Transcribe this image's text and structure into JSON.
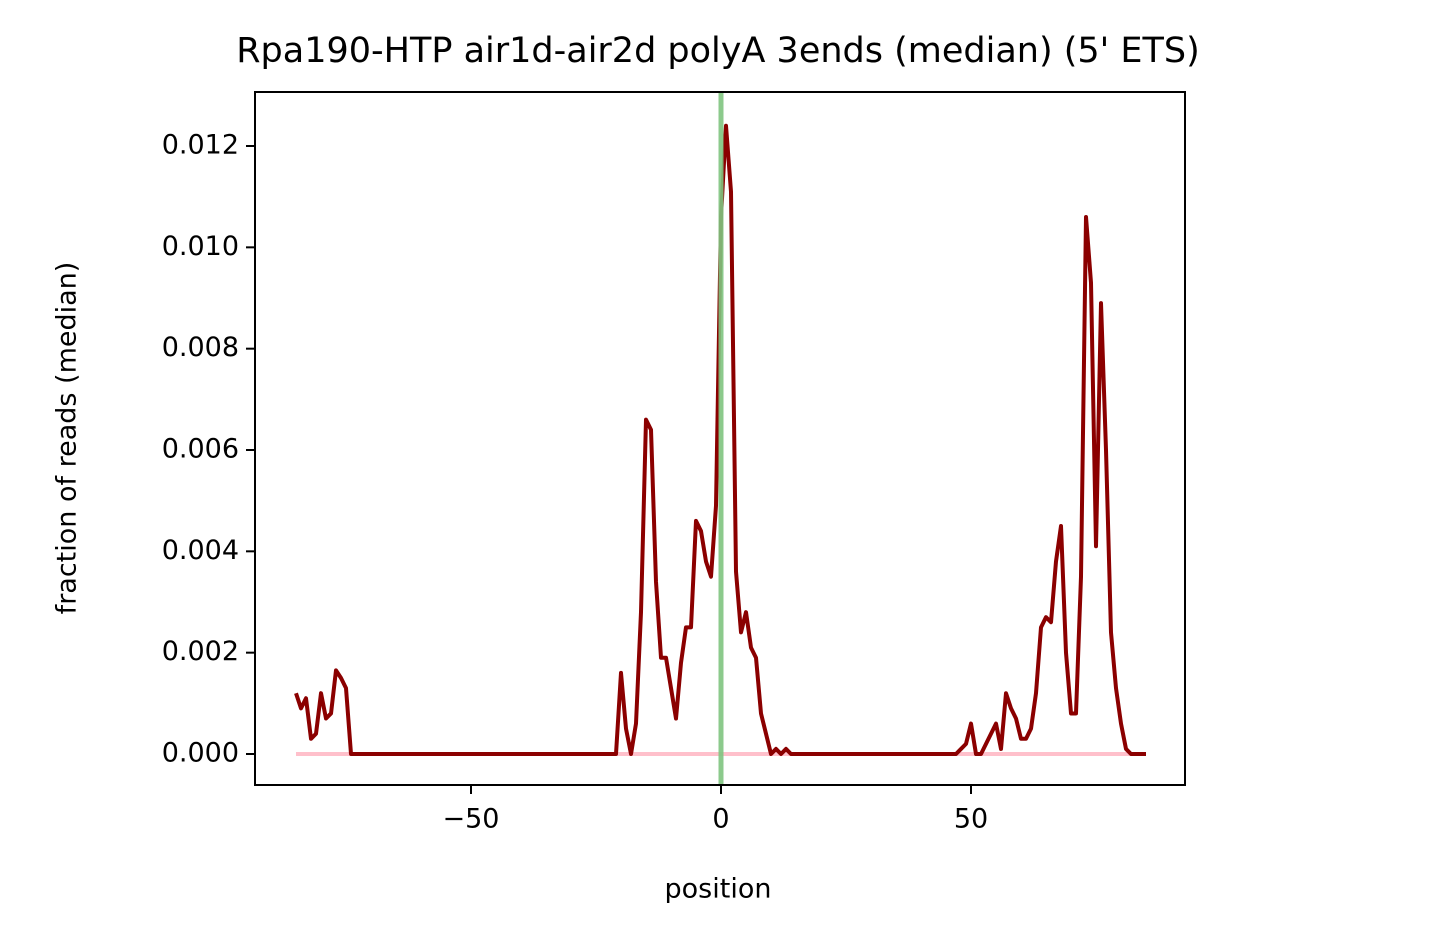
{
  "chart_data": {
    "type": "line",
    "title": "Rpa190-HTP air1d-air2d polyA 3ends (median) (5' ETS)",
    "xlabel": "position",
    "ylabel": "fraction of reads (median)",
    "x": [
      -85,
      -84,
      -83,
      -82,
      -81,
      -80,
      -79,
      -78,
      -77,
      -76,
      -75,
      -74,
      -73,
      -72,
      -71,
      -70,
      -69,
      -68,
      -67,
      -66,
      -65,
      -64,
      -63,
      -62,
      -61,
      -60,
      -59,
      -58,
      -57,
      -56,
      -55,
      -54,
      -53,
      -52,
      -51,
      -50,
      -49,
      -48,
      -47,
      -46,
      -45,
      -44,
      -43,
      -42,
      -41,
      -40,
      -39,
      -38,
      -37,
      -36,
      -35,
      -34,
      -33,
      -32,
      -31,
      -30,
      -29,
      -28,
      -27,
      -26,
      -25,
      -24,
      -23,
      -22,
      -21,
      -20,
      -19,
      -18,
      -17,
      -16,
      -15,
      -14,
      -13,
      -12,
      -11,
      -10,
      -9,
      -8,
      -7,
      -6,
      -5,
      -4,
      -3,
      -2,
      -1,
      0,
      1,
      2,
      3,
      4,
      5,
      6,
      7,
      8,
      9,
      10,
      11,
      12,
      13,
      14,
      15,
      16,
      17,
      18,
      19,
      20,
      21,
      22,
      23,
      24,
      25,
      26,
      27,
      28,
      29,
      30,
      31,
      32,
      33,
      34,
      35,
      36,
      37,
      38,
      39,
      40,
      41,
      42,
      43,
      44,
      45,
      46,
      47,
      48,
      49,
      50,
      51,
      52,
      53,
      54,
      55,
      56,
      57,
      58,
      59,
      60,
      61,
      62,
      63,
      64,
      65,
      66,
      67,
      68,
      69,
      70,
      71,
      72,
      73,
      74,
      75,
      76,
      77,
      78,
      79,
      80,
      81,
      82,
      83,
      84,
      85
    ],
    "series": [
      {
        "color": "#ffc0cb",
        "values": [
          0,
          0,
          0,
          0,
          0,
          0,
          0,
          0,
          0,
          0,
          0,
          0,
          0,
          0,
          0,
          0,
          0,
          0,
          0,
          0,
          0,
          0,
          0,
          0,
          0,
          0,
          0,
          0,
          0,
          0,
          0,
          0,
          0,
          0,
          0,
          0,
          0,
          0,
          0,
          0,
          0,
          0,
          0,
          0,
          0,
          0,
          0,
          0,
          0,
          0,
          0,
          0,
          0,
          0,
          0,
          0,
          0,
          0,
          0,
          0,
          0,
          0,
          0,
          0,
          0,
          0,
          0,
          0,
          0,
          0,
          0,
          0,
          0,
          0,
          0,
          0,
          0,
          0,
          0,
          0,
          0,
          0,
          0,
          0,
          0,
          0,
          0,
          0,
          0,
          0,
          0,
          0,
          0,
          0,
          0,
          0,
          0,
          0,
          0,
          0,
          0,
          0,
          0,
          0,
          0,
          0,
          0,
          0,
          0,
          0,
          0,
          0,
          0,
          0,
          0,
          0,
          0,
          0,
          0,
          0,
          0,
          0,
          0,
          0,
          0,
          0,
          0,
          0,
          0,
          0,
          0,
          0,
          0,
          0,
          0,
          0,
          0,
          0,
          0,
          0,
          0,
          0,
          0,
          0,
          0,
          0,
          0,
          0,
          0,
          0,
          0,
          0,
          0,
          0,
          0,
          0,
          0,
          0,
          0,
          0,
          0,
          0,
          0,
          0,
          0,
          0,
          0,
          0,
          0,
          0,
          0
        ]
      },
      {
        "color": "#8b0000",
        "values": [
          0.0012,
          0.0009,
          0.0011,
          0.0003,
          0.0004,
          0.0012,
          0.0007,
          0.0008,
          0.00165,
          0.0015,
          0.0013,
          0,
          0,
          0,
          0,
          0,
          0,
          0,
          0,
          0,
          0,
          0,
          0,
          0,
          0,
          0,
          0,
          0,
          0,
          0,
          0,
          0,
          0,
          0,
          0,
          0,
          0,
          0,
          0,
          0,
          0,
          0,
          0,
          0,
          0,
          0,
          0,
          0,
          0,
          0,
          0,
          0,
          0,
          0,
          0,
          0,
          0,
          0,
          0,
          0,
          0,
          0,
          0,
          0,
          0,
          0.0016,
          0.0005,
          0,
          0.0006,
          0.0028,
          0.0066,
          0.0064,
          0.0034,
          0.0019,
          0.0019,
          0.0013,
          0.0007,
          0.0018,
          0.0025,
          0.0025,
          0.0046,
          0.0044,
          0.0038,
          0.0035,
          0.0049,
          0.0106,
          0.0124,
          0.0111,
          0.0036,
          0.0024,
          0.0028,
          0.0021,
          0.0019,
          0.0008,
          0.0004,
          0,
          0.0001,
          0,
          0.0001,
          0,
          0,
          0,
          0,
          0,
          0,
          0,
          0,
          0,
          0,
          0,
          0,
          0,
          0,
          0,
          0,
          0,
          0,
          0,
          0,
          0,
          0,
          0,
          0,
          0,
          0,
          0,
          0,
          0,
          0,
          0,
          0,
          0,
          0,
          0.0001,
          0.0002,
          0.0006,
          0,
          0,
          0.0002,
          0.0004,
          0.0006,
          0.0001,
          0.0012,
          0.0009,
          0.0007,
          0.0003,
          0.0003,
          0.0005,
          0.0012,
          0.0025,
          0.0027,
          0.0026,
          0.0038,
          0.0045,
          0.002,
          0.0008,
          0.0008,
          0.0035,
          0.0106,
          0.0093,
          0.0041,
          0.0089,
          0.006,
          0.0024,
          0.0013,
          0.0006,
          0.0001,
          0,
          0,
          0,
          0
        ]
      }
    ],
    "vline": {
      "x": 0,
      "color": "#7fc47f"
    },
    "xlim": [
      -93.2,
      92.8
    ],
    "xticks": [
      {
        "value": -50,
        "label": "−50"
      },
      0,
      50
    ],
    "ylim": [
      -0.000612,
      0.013066
    ],
    "yticks": [
      {
        "value": 0,
        "label": "0.000"
      },
      {
        "value": 0.002,
        "label": "0.002"
      },
      {
        "value": 0.004,
        "label": "0.004"
      },
      {
        "value": 0.006,
        "label": "0.006"
      },
      {
        "value": 0.008,
        "label": "0.008"
      },
      {
        "value": 0.01,
        "label": "0.010"
      },
      {
        "value": 0.012,
        "label": "0.012"
      }
    ]
  }
}
